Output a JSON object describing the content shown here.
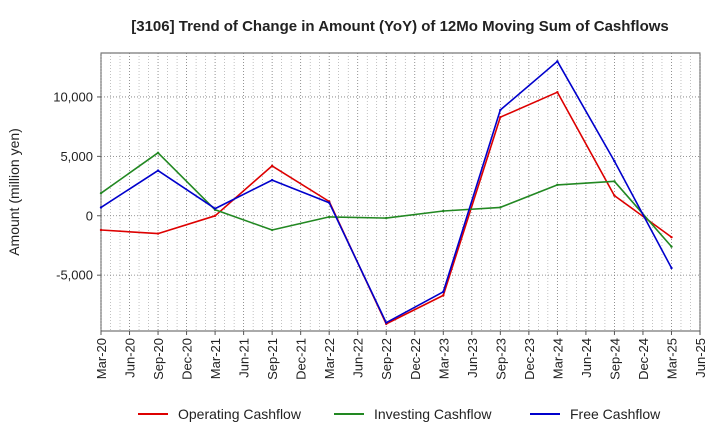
{
  "chart_data": {
    "type": "line",
    "title": "[3106]  Trend of Change in Amount (YoY) of 12Mo Moving Sum of Cashflows",
    "xlabel": "",
    "ylabel": "Amount (million yen)",
    "categories": [
      "Mar-20",
      "Jun-20",
      "Sep-20",
      "Dec-20",
      "Mar-21",
      "Jun-21",
      "Sep-21",
      "Dec-21",
      "Mar-22",
      "Jun-22",
      "Sep-22",
      "Dec-22",
      "Mar-23",
      "Jun-23",
      "Sep-23",
      "Dec-23",
      "Mar-24",
      "Jun-24",
      "Sep-24",
      "Dec-24",
      "Mar-25",
      "Jun-25"
    ],
    "ylim": [
      -9700,
      13700
    ],
    "yticks": [
      -5000,
      0,
      5000,
      10000
    ],
    "ytick_labels": [
      "-5,000",
      "0",
      "5,000",
      "10,000"
    ],
    "grid": true,
    "legend_position": "bottom",
    "series": [
      {
        "name": "Operating Cashflow",
        "color": "#dd0000",
        "values": [
          -1200,
          null,
          -1500,
          null,
          0,
          null,
          4200,
          null,
          1200,
          null,
          -9100,
          null,
          -6700,
          null,
          8300,
          null,
          10400,
          null,
          1700,
          null,
          -1800,
          null
        ]
      },
      {
        "name": "Investing Cashflow",
        "color": "#228822",
        "values": [
          1900,
          null,
          5300,
          null,
          500,
          null,
          -1200,
          null,
          -100,
          null,
          -200,
          null,
          400,
          null,
          700,
          null,
          2600,
          null,
          2900,
          null,
          -2600,
          null
        ]
      },
      {
        "name": "Free Cashflow",
        "color": "#0000cc",
        "values": [
          700,
          null,
          3800,
          null,
          600,
          null,
          3000,
          null,
          1100,
          null,
          -9000,
          null,
          -6400,
          null,
          8900,
          null,
          13000,
          null,
          4600,
          null,
          -4400,
          null
        ]
      }
    ]
  }
}
